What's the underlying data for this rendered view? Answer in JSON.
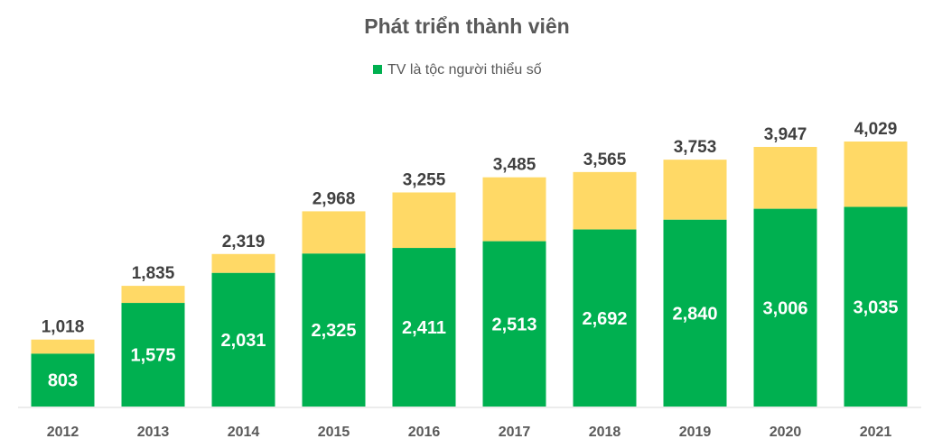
{
  "chart_data": {
    "type": "bar",
    "stacked": true,
    "title": "Phát triển thành viên",
    "categories": [
      "2012",
      "2013",
      "2014",
      "2015",
      "2016",
      "2017",
      "2018",
      "2019",
      "2020",
      "2021"
    ],
    "series": [
      {
        "name": "TV là tộc người thiểu số",
        "color": "#00b050",
        "values": [
          803,
          1575,
          2031,
          2325,
          2411,
          2513,
          2692,
          2840,
          3006,
          3035
        ],
        "labels": [
          "803",
          "1,575",
          "2,031",
          "2,325",
          "2,411",
          "2,513",
          "2,692",
          "2,840",
          "3,006",
          "3,035"
        ]
      },
      {
        "color": "#ffd966",
        "values": [
          215,
          260,
          288,
          643,
          844,
          972,
          873,
          913,
          941,
          994
        ]
      }
    ],
    "totals": [
      1018,
      1835,
      2319,
      2968,
      3255,
      3485,
      3565,
      3753,
      3947,
      4029
    ],
    "total_labels": [
      "1,018",
      "1,835",
      "2,319",
      "2,968",
      "3,255",
      "3,485",
      "3,565",
      "3,753",
      "3,947",
      "4,029"
    ],
    "ylim": [
      0,
      4029
    ],
    "grid": false,
    "legend_position": "top-center",
    "xlabel": "",
    "ylabel": ""
  }
}
